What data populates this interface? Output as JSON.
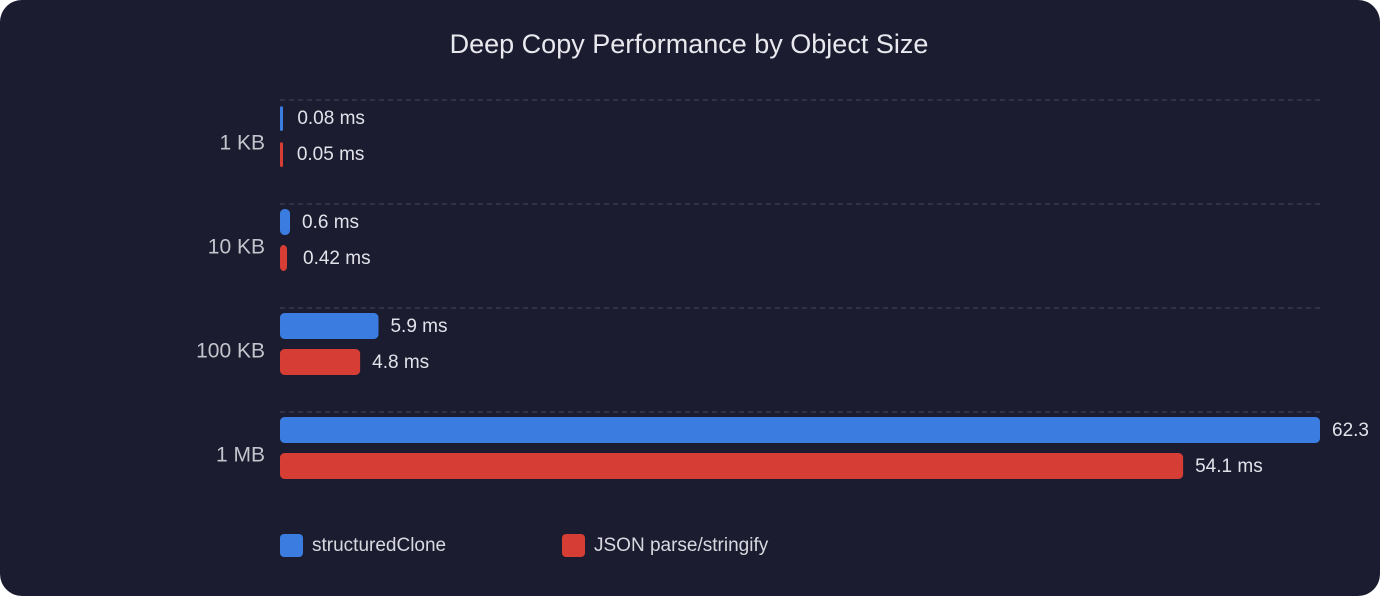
{
  "chart_data": {
    "type": "bar",
    "orientation": "horizontal",
    "title": "Deep Copy Performance by Object Size",
    "categories": [
      "1 KB",
      "10 KB",
      "100 KB",
      "1 MB"
    ],
    "series": [
      {
        "name": "structuredClone",
        "color": "#3b7ce0",
        "values": [
          0.08,
          0.6,
          5.9,
          62.3
        ],
        "value_labels": [
          "0.08 ms",
          "0.6 ms",
          "5.9 ms",
          "62.3"
        ]
      },
      {
        "name": "JSON parse/stringify",
        "color": "#d63d35",
        "values": [
          0.05,
          0.42,
          4.8,
          54.1
        ],
        "value_labels": [
          "0.05 ms",
          "0.42 ms",
          "4.8 ms",
          "54.1 ms"
        ]
      }
    ],
    "xlim": [
      0,
      62.3
    ],
    "grid": true,
    "legend": "bottom"
  }
}
